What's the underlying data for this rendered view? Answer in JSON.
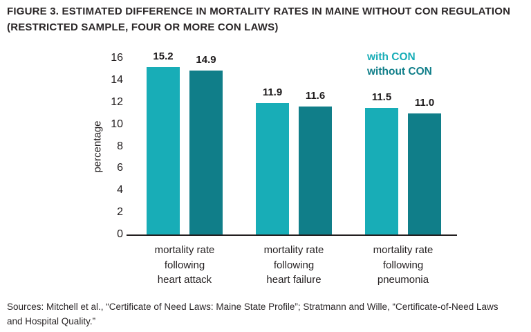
{
  "title": "FIGURE 3. ESTIMATED DIFFERENCE IN MORTALITY RATES IN MAINE WITHOUT CON REGULATION\n(RESTRICTED SAMPLE, FOUR OR MORE CON LAWS)",
  "source_note": "Sources: Mitchell et al., “Certificate of Need Laws: Maine State Profile”; Stratmann and Wille, “Certificate-of-Need Laws\nand Hospital Quality.”",
  "colors": {
    "with_con": "#18ADB7",
    "without_con": "#107E89",
    "axis": "#231f20",
    "text": "#2b2728"
  },
  "chart_data": {
    "type": "bar",
    "title": "FIGURE 3. ESTIMATED DIFFERENCE IN MORTALITY RATES IN MAINE WITHOUT CON REGULATION (RESTRICTED SAMPLE, FOUR OR MORE CON LAWS)",
    "xlabel": "",
    "ylabel": "percentage",
    "ylim": [
      0,
      16
    ],
    "yticks": [
      0,
      2,
      4,
      6,
      8,
      10,
      12,
      14,
      16
    ],
    "grid": false,
    "legend_position": "top-right",
    "categories": [
      "mortality rate\nfollowing\nheart attack",
      "mortality rate\nfollowing\nheart failure",
      "mortality rate\nfollowing\npneumonia"
    ],
    "series": [
      {
        "name": "with CON",
        "color": "#18ADB7",
        "values": [
          15.2,
          11.9,
          11.5
        ]
      },
      {
        "name": "without CON",
        "color": "#107E89",
        "values": [
          14.9,
          11.6,
          11.0
        ]
      }
    ]
  }
}
